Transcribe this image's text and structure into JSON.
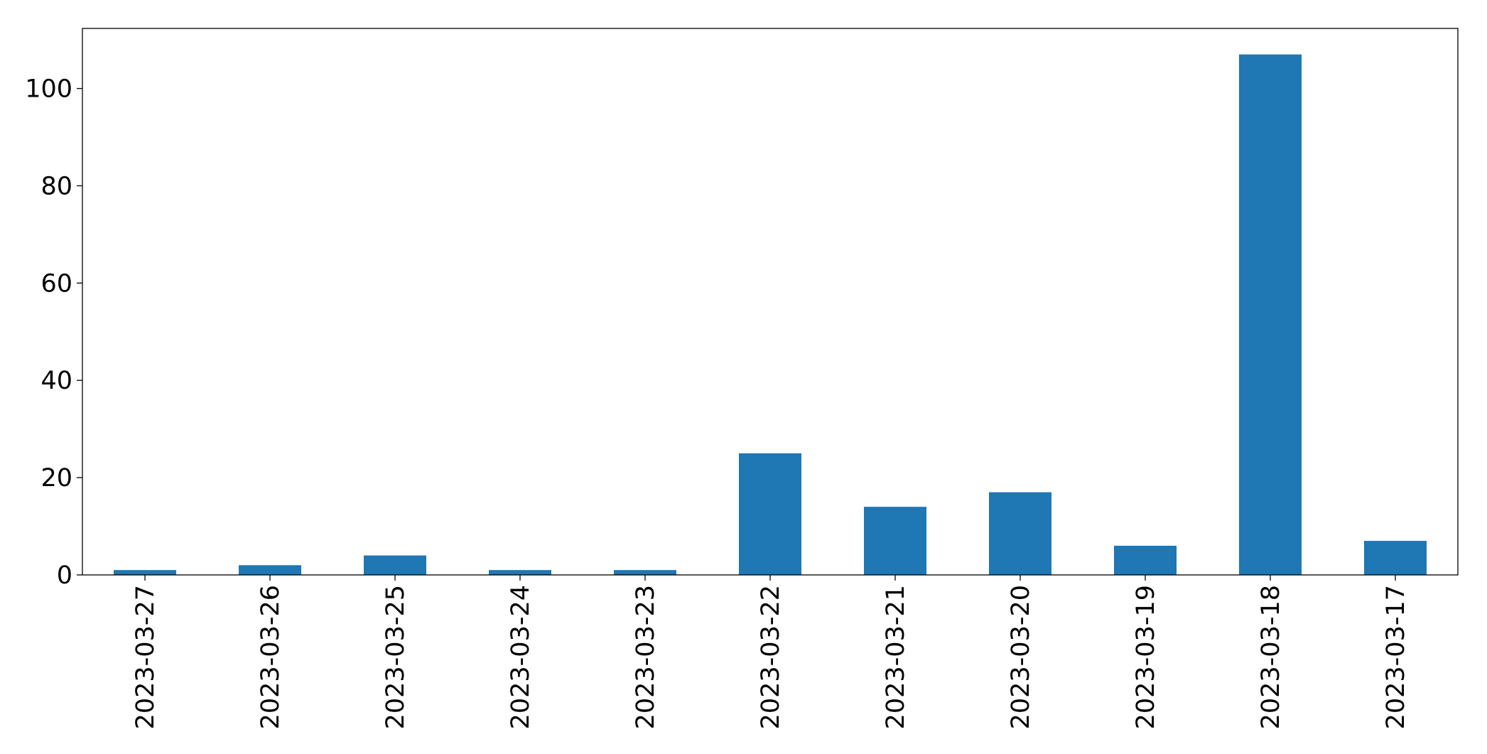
{
  "chart_data": {
    "type": "bar",
    "categories": [
      "2023-03-27",
      "2023-03-26",
      "2023-03-25",
      "2023-03-24",
      "2023-03-23",
      "2023-03-22",
      "2023-03-21",
      "2023-03-20",
      "2023-03-19",
      "2023-03-18",
      "2023-03-17"
    ],
    "values": [
      1,
      2,
      4,
      1,
      1,
      25,
      14,
      17,
      6,
      107,
      7
    ],
    "color": "#1f77b4",
    "ylim": [
      0,
      112.35
    ],
    "yticks": [
      0,
      20,
      40,
      60,
      80,
      100
    ],
    "grid": false
  }
}
